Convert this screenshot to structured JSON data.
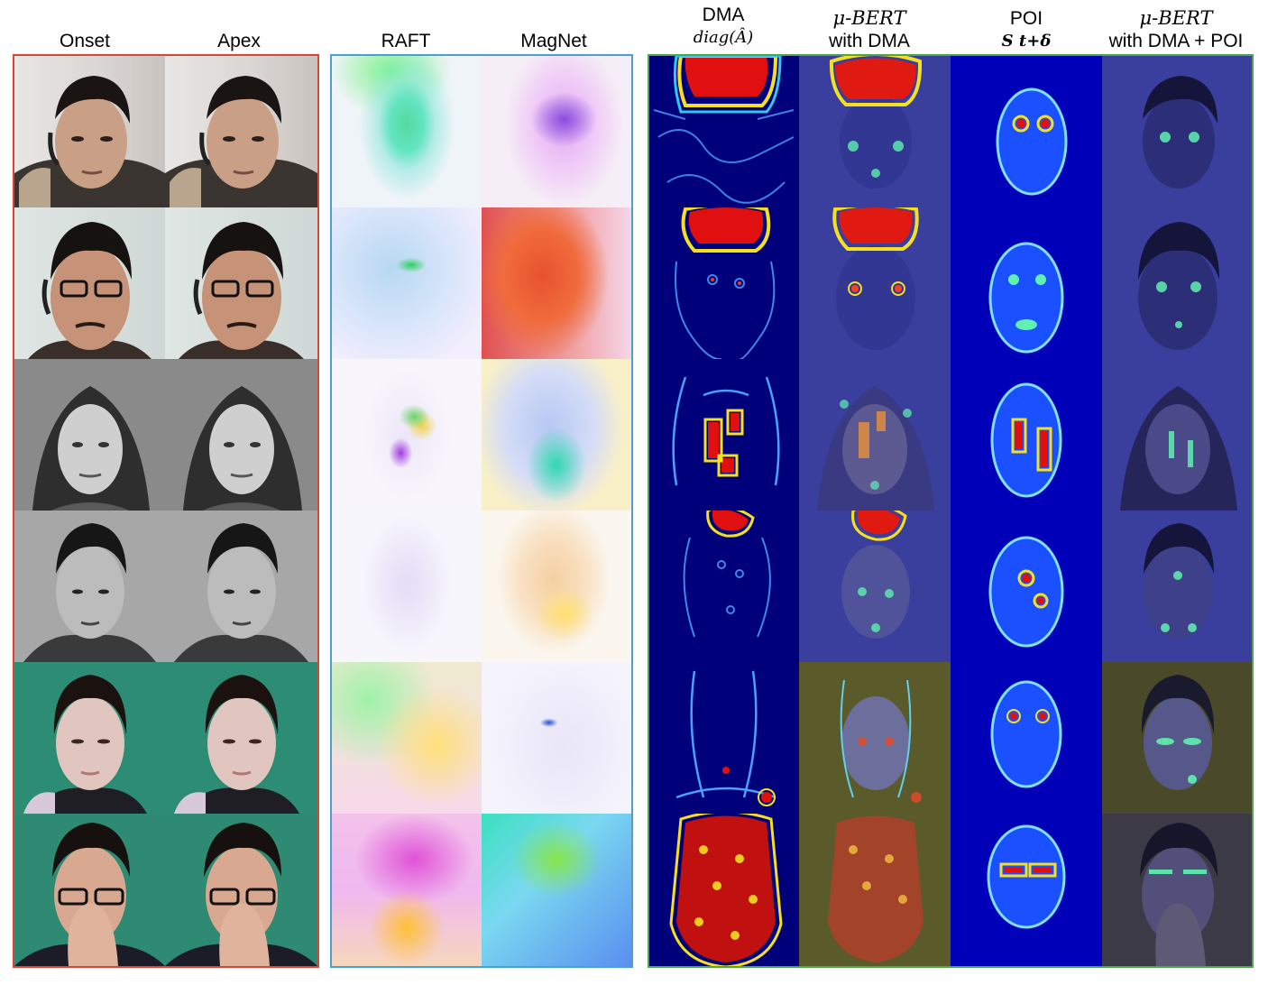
{
  "headers": {
    "onset": "Onset",
    "apex": "Apex",
    "raft": "RAFT",
    "magnet": "MagNet",
    "dma": "DMA",
    "dma_formula": "diag(Â)",
    "mubert_dma_l1": "μ-BERT",
    "mubert_dma_l2": "with DMA",
    "poi": "POI",
    "poi_formula": "S t+δ",
    "mubert_poi_l1": "μ-BERT",
    "mubert_poi_l2": "with DMA + POI"
  },
  "colors": {
    "onset_apex_frame": "#d9473a",
    "flow_frame": "#4a9fd7",
    "attention_frame": "#4fa64a"
  },
  "rows": 6
}
